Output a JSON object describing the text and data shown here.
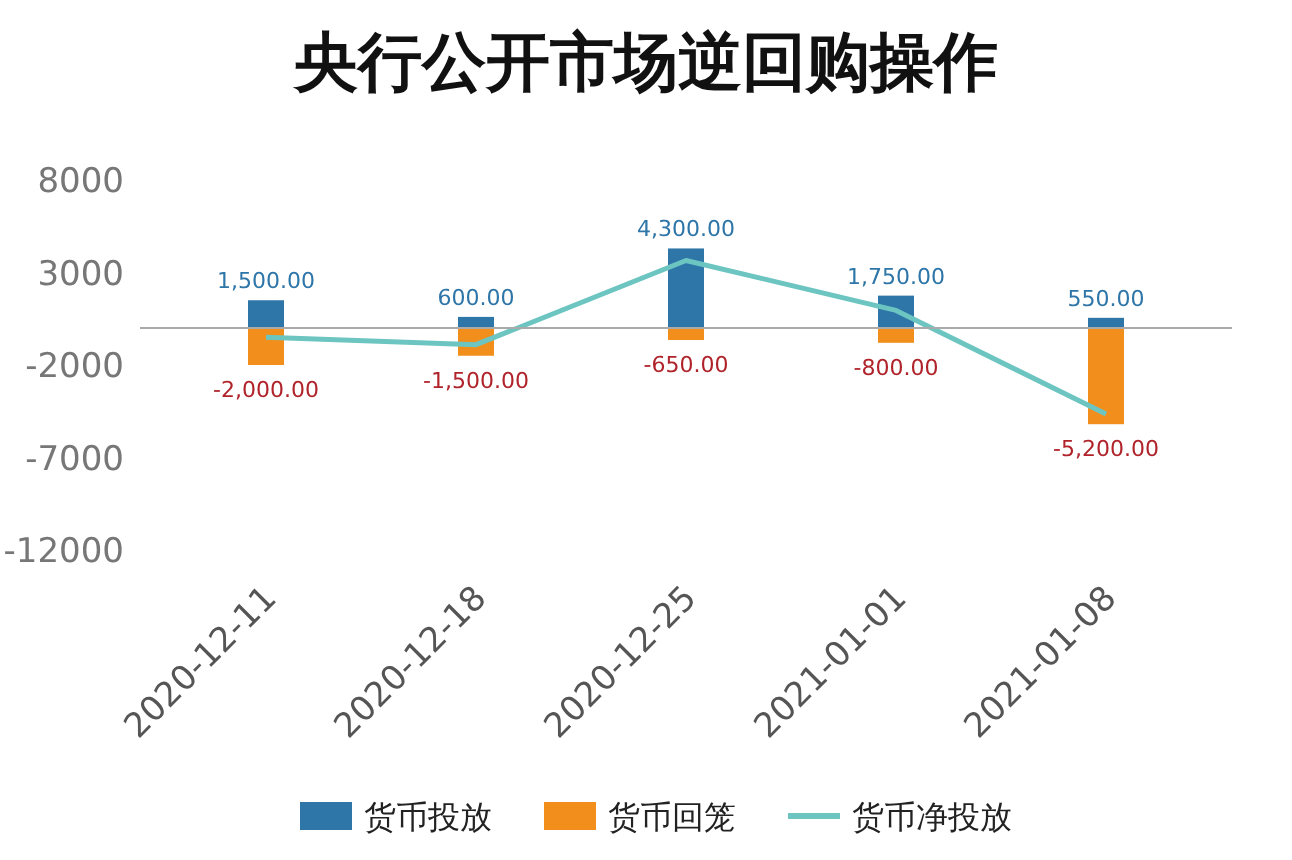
{
  "chart_data": {
    "type": "bar",
    "title": "央行公开市场逆回购操作",
    "categories": [
      "2020-12-11",
      "2020-12-18",
      "2020-12-25",
      "2021-01-01",
      "2021-01-08"
    ],
    "stacked": true,
    "ylim": [
      -12000,
      8000
    ],
    "yticks": [
      -12000,
      -7000,
      -2000,
      3000,
      8000
    ],
    "grid": false,
    "legend": "bottom",
    "series": [
      {
        "name": "货币投放",
        "color": "#2e75a8",
        "values": [
          1500,
          600,
          4300,
          1750,
          550
        ],
        "value_labels": [
          "1,500.00",
          "600.00",
          "4,300.00",
          "1,750.00",
          "550.00"
        ]
      },
      {
        "name": "货币回笼",
        "color": "#f28e1c",
        "values": [
          -2000,
          -1500,
          -650,
          -800,
          -5200
        ],
        "value_labels": [
          "-2,000.00",
          "-1,500.00",
          "-650.00",
          "-800.00",
          "-5,200.00"
        ]
      },
      {
        "name": "货币净投放",
        "type": "line",
        "color": "#6cc5c1",
        "values": [
          -500,
          -900,
          3650,
          950,
          -4650
        ]
      }
    ]
  }
}
